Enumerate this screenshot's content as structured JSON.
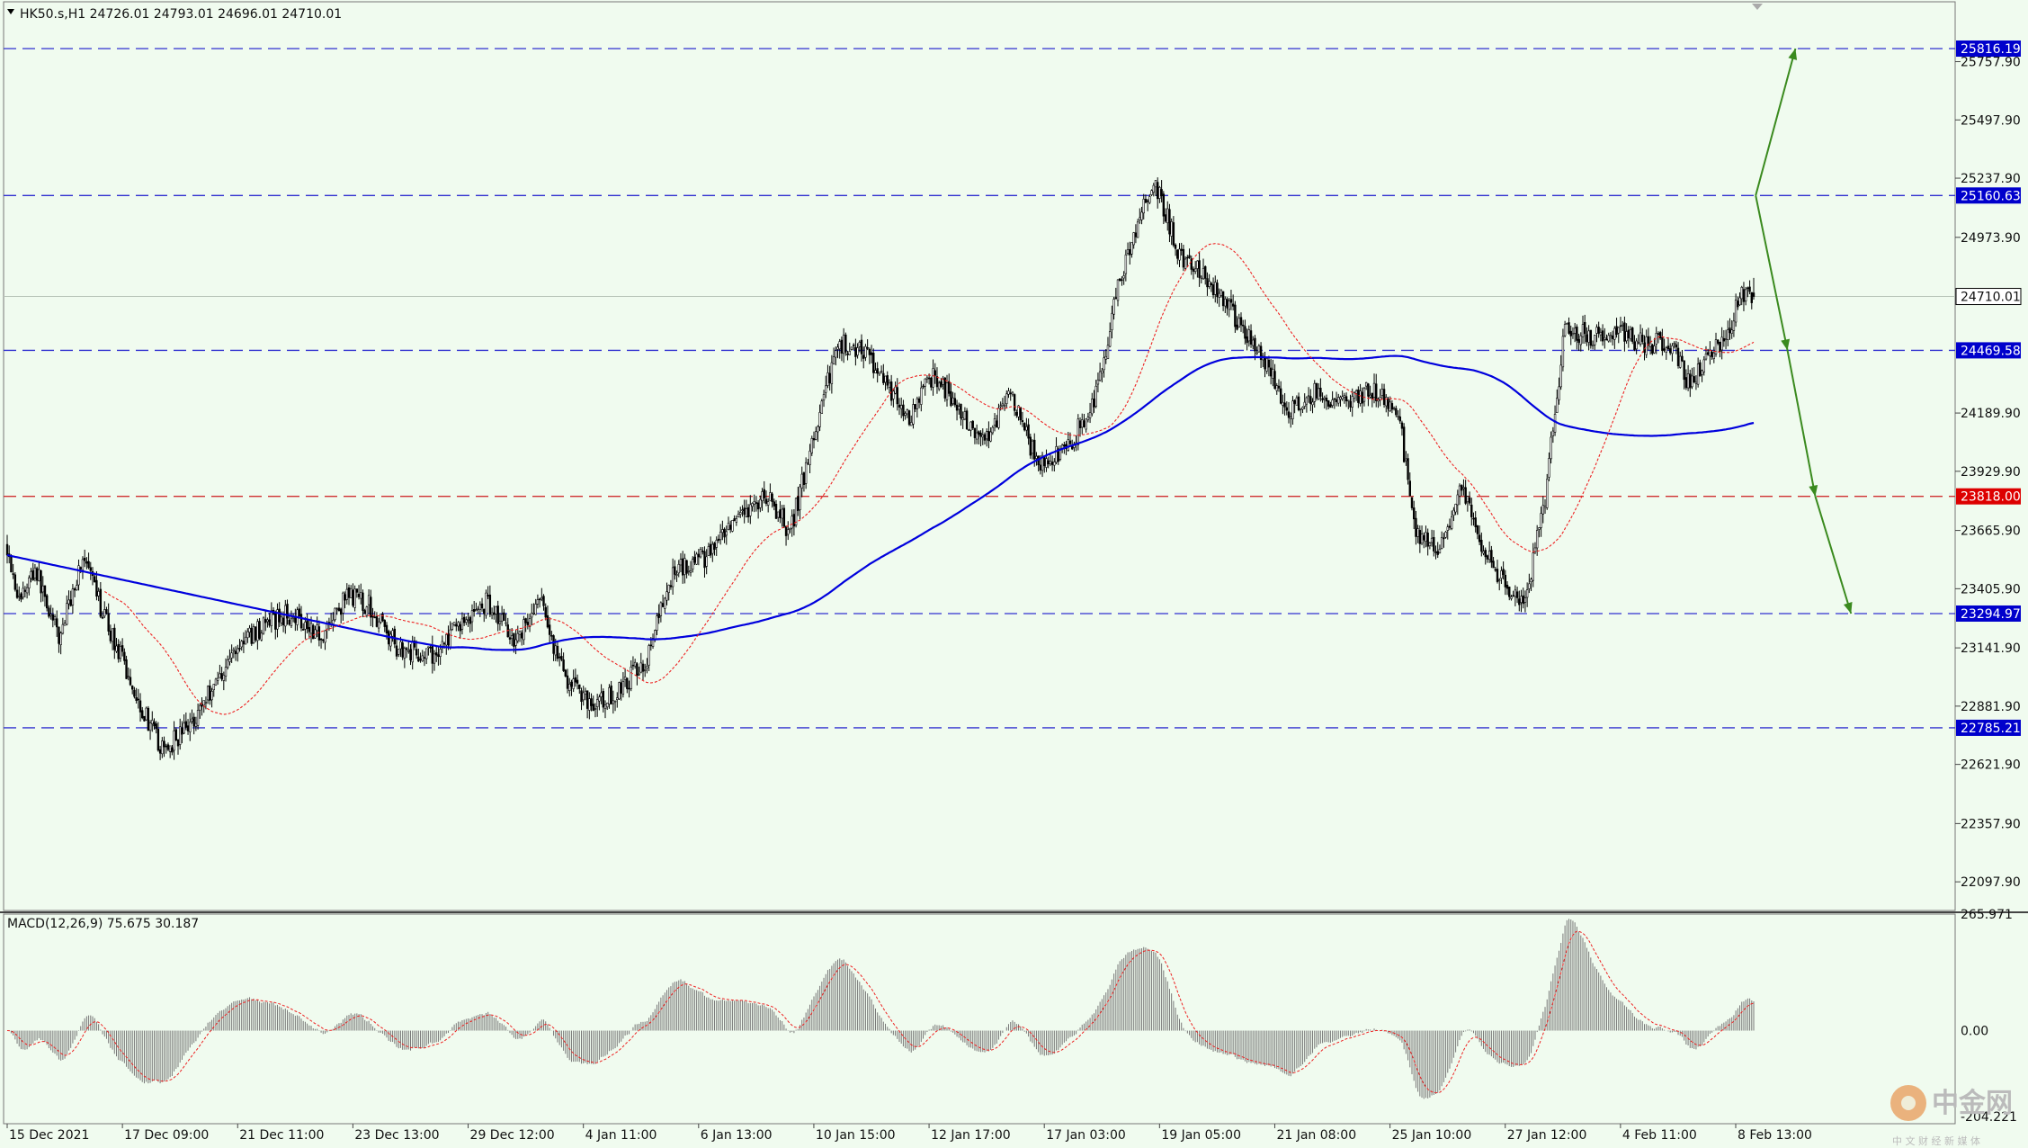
{
  "chart_data": [
    {
      "type": "candlestick",
      "title": "HK50.s,H1",
      "header_values": "24726.01  24793.01  24696.01  24710.01",
      "ylim": [
        21970,
        26025
      ],
      "y_ticks": [
        "25757.90",
        "25497.90",
        "25237.90",
        "24973.90",
        "24189.90",
        "23929.90",
        "23665.90",
        "23405.90",
        "23141.90",
        "22881.90",
        "22621.90",
        "22357.90",
        "22097.90"
      ],
      "x_ticks": [
        "15 Dec 2021",
        "17 Dec 09:00",
        "21 Dec 11:00",
        "23 Dec 13:00",
        "29 Dec 12:00",
        "4 Jan 11:00",
        "6 Jan 13:00",
        "10 Jan 15:00",
        "12 Jan 17:00",
        "17 Jan 03:00",
        "19 Jan 05:00",
        "21 Jan 08:00",
        "25 Jan 10:00",
        "27 Jan 12:00",
        "4 Feb 11:00",
        "8 Feb 13:00"
      ],
      "price_levels": [
        {
          "value": 25816.19,
          "label": "25816.19",
          "color": "#0000cc",
          "line_color": "#3030d0"
        },
        {
          "value": 25160.63,
          "label": "25160.63",
          "color": "#0000cc",
          "line_color": "#3030d0"
        },
        {
          "value": 24469.58,
          "label": "24469.58",
          "color": "#0000cc",
          "line_color": "#3030d0"
        },
        {
          "value": 23818.0,
          "label": "23818.00",
          "color": "#dd0000",
          "line_color": "#d03030"
        },
        {
          "value": 23294.97,
          "label": "23294.97",
          "color": "#0000cc",
          "line_color": "#3030d0"
        },
        {
          "value": 22785.21,
          "label": "22785.21",
          "color": "#0000cc",
          "line_color": "#3030d0"
        }
      ],
      "current_price": {
        "value": 24710.01,
        "label": "24710.01"
      },
      "anchors": [
        [
          0,
          23600
        ],
        [
          6,
          23350
        ],
        [
          14,
          23500
        ],
        [
          26,
          23180
        ],
        [
          38,
          23550
        ],
        [
          48,
          23300
        ],
        [
          64,
          22950
        ],
        [
          78,
          22680
        ],
        [
          92,
          22800
        ],
        [
          104,
          22980
        ],
        [
          116,
          23150
        ],
        [
          130,
          23250
        ],
        [
          144,
          23300
        ],
        [
          158,
          23200
        ],
        [
          172,
          23380
        ],
        [
          182,
          23330
        ],
        [
          196,
          23150
        ],
        [
          214,
          23100
        ],
        [
          228,
          23250
        ],
        [
          242,
          23350
        ],
        [
          256,
          23180
        ],
        [
          268,
          23350
        ],
        [
          280,
          23020
        ],
        [
          296,
          22880
        ],
        [
          308,
          22950
        ],
        [
          322,
          23100
        ],
        [
          336,
          23500
        ],
        [
          352,
          23550
        ],
        [
          368,
          23700
        ],
        [
          382,
          23820
        ],
        [
          394,
          23660
        ],
        [
          406,
          24080
        ],
        [
          418,
          24500
        ],
        [
          430,
          24480
        ],
        [
          442,
          24340
        ],
        [
          454,
          24150
        ],
        [
          466,
          24370
        ],
        [
          478,
          24210
        ],
        [
          490,
          24060
        ],
        [
          506,
          24270
        ],
        [
          518,
          23970
        ],
        [
          534,
          24030
        ],
        [
          548,
          24280
        ],
        [
          560,
          24780
        ],
        [
          572,
          25120
        ],
        [
          578,
          25210
        ],
        [
          590,
          24900
        ],
        [
          604,
          24800
        ],
        [
          618,
          24620
        ],
        [
          632,
          24420
        ],
        [
          646,
          24200
        ],
        [
          658,
          24280
        ],
        [
          672,
          24220
        ],
        [
          686,
          24290
        ],
        [
          700,
          24210
        ],
        [
          708,
          23680
        ],
        [
          720,
          23560
        ],
        [
          732,
          23850
        ],
        [
          742,
          23600
        ],
        [
          756,
          23380
        ],
        [
          764,
          23340
        ],
        [
          774,
          23820
        ],
        [
          784,
          24560
        ],
        [
          798,
          24530
        ],
        [
          812,
          24560
        ],
        [
          824,
          24490
        ],
        [
          836,
          24520
        ],
        [
          846,
          24320
        ],
        [
          856,
          24450
        ],
        [
          864,
          24500
        ],
        [
          872,
          24710
        ]
      ],
      "last_candle": {
        "open": 24726.01,
        "high": 24793.01,
        "low": 24696.01,
        "close": 24710.01
      },
      "ma200_color": "#0000dd",
      "ma50_color": "#ee2222",
      "projection_arrows": [
        {
          "from": [
            880,
            25160.63
          ],
          "to": [
            900,
            25816.19
          ],
          "color": "#3a8a1e"
        },
        {
          "from": [
            880,
            25160.63
          ],
          "to": [
            896,
            24469.58
          ],
          "color": "#3a8a1e"
        },
        {
          "from": [
            896,
            24469.58
          ],
          "to": [
            910,
            23818.0
          ],
          "color": "#3a8a1e"
        },
        {
          "from": [
            910,
            23818.0
          ],
          "to": [
            928,
            23294.97
          ],
          "color": "#3a8a1e"
        }
      ]
    },
    {
      "type": "bar",
      "title": "MACD(12,26,9) 75.675 30.187",
      "ylim": [
        -204.221,
        265.971
      ],
      "y_ticks": [
        "265.971",
        "0.00",
        "-204.221"
      ],
      "histogram_color": "#777777",
      "signal_color": "#ee2222"
    }
  ],
  "watermark": {
    "text": "中金网",
    "subtitle": "中 文 财 经 新 媒 体"
  }
}
